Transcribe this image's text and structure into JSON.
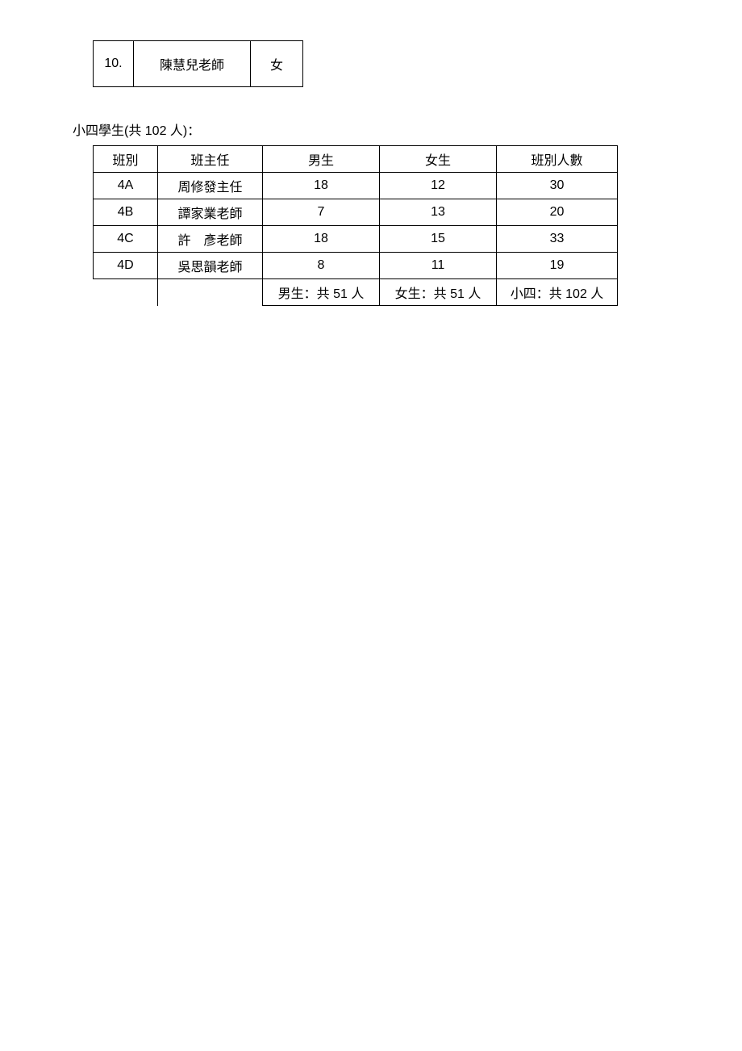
{
  "teacher_row": {
    "number": "10.",
    "name": "陳慧兒老師",
    "gender": "女"
  },
  "section_title": "小四學生(共 102 人)：",
  "table": {
    "headers": {
      "class": "班別",
      "teacher": "班主任",
      "male": "男生",
      "female": "女生",
      "total": "班別人數"
    },
    "rows": [
      {
        "class": "4A",
        "teacher": "周修發主任",
        "male": "18",
        "female": "12",
        "total": "30"
      },
      {
        "class": "4B",
        "teacher": "譚家業老師",
        "male": "7",
        "female": "13",
        "total": "20"
      },
      {
        "class": "4C",
        "teacher": "許　彥老師",
        "male": "18",
        "female": "15",
        "total": "33"
      },
      {
        "class": "4D",
        "teacher": "吳思韻老師",
        "male": "8",
        "female": "11",
        "total": "19"
      }
    ],
    "summary": {
      "male": "男生：共 51 人",
      "female": "女生：共 51 人",
      "total": "小四：共 102 人"
    }
  }
}
